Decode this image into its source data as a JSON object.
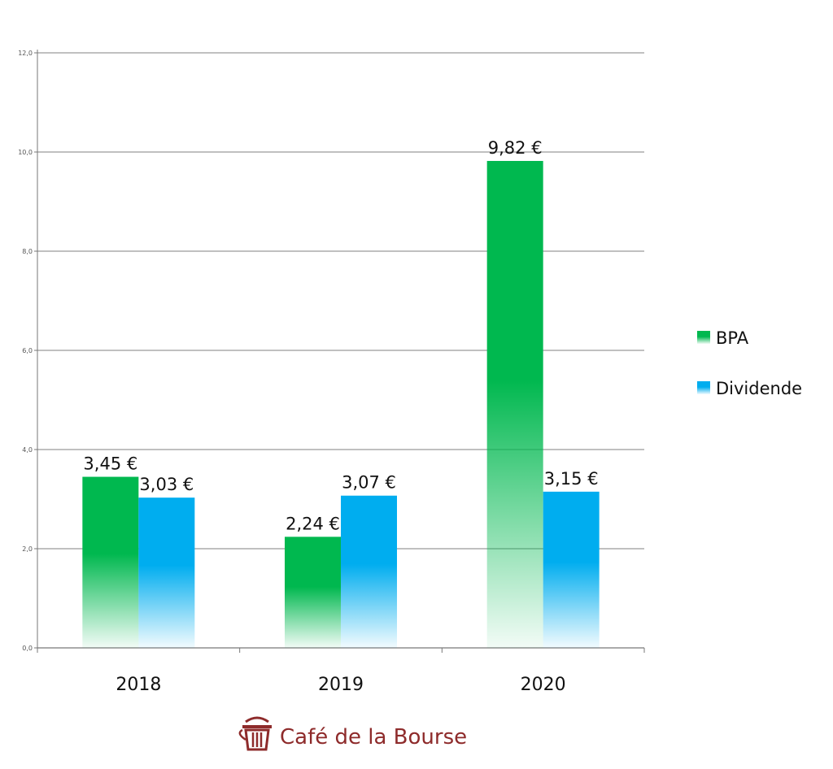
{
  "chart_data": {
    "type": "bar",
    "categories": [
      "2018",
      "2019",
      "2020"
    ],
    "series": [
      {
        "name": "BPA",
        "values": [
          3.45,
          2.24,
          9.82
        ],
        "labels": [
          "3,45 €",
          "2,24 €",
          "9,82 €"
        ],
        "color": "#00b84f"
      },
      {
        "name": "Dividende",
        "values": [
          3.03,
          3.07,
          3.15
        ],
        "labels": [
          "3,03 €",
          "3,07 €",
          "3,15 €"
        ],
        "color": "#00adef"
      }
    ],
    "ylim": [
      0,
      12
    ],
    "yticks": [
      "0,0",
      "2,0",
      "4,0",
      "6,0",
      "8,0",
      "10,0",
      "12,0"
    ],
    "grid": true,
    "legend_position": "right"
  },
  "branding": {
    "logo_text": "Café de la Bourse",
    "logo_icon": "coffee-cup-icon",
    "color": "#8e2b2b"
  }
}
